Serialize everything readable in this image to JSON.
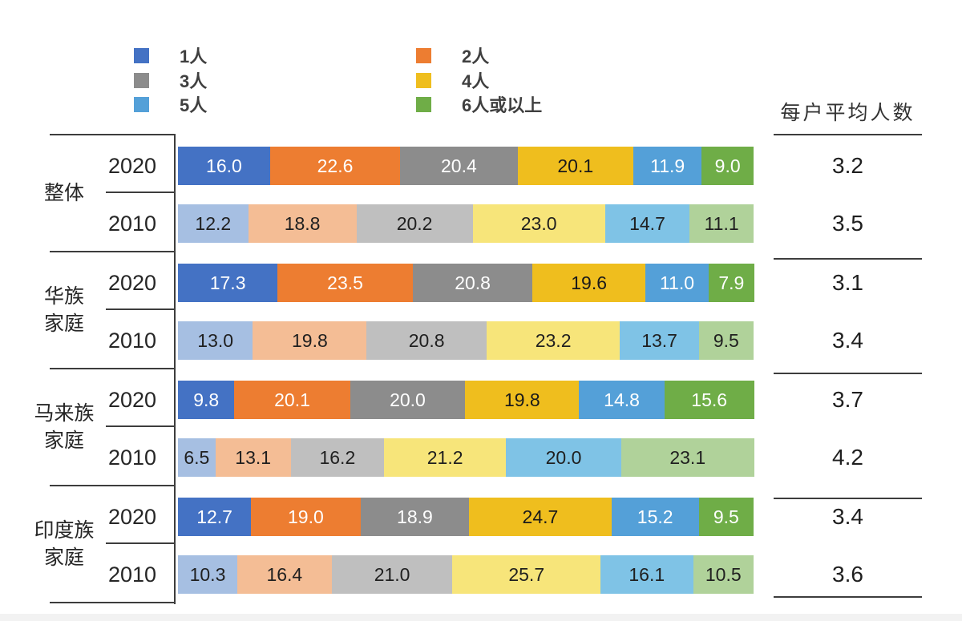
{
  "legend": {
    "items": [
      {
        "label": "1人",
        "color": "#4472C4"
      },
      {
        "label": "2人",
        "color": "#ED7D31"
      },
      {
        "label": "3人",
        "color": "#8C8C8C"
      },
      {
        "label": "4人",
        "color": "#EFBE1E"
      },
      {
        "label": "5人",
        "color": "#54A0D8"
      },
      {
        "label": "6人或以上",
        "color": "#6FAD47"
      }
    ]
  },
  "chart_data": {
    "type": "bar",
    "stacked": true,
    "orientation": "horizontal",
    "unit": "%",
    "categories": [
      "1人",
      "2人",
      "3人",
      "4人",
      "5人",
      "6人或以上"
    ],
    "avg_header": "每户平均人数",
    "series_colors_2020": [
      "#4472C4",
      "#ED7D31",
      "#8C8C8C",
      "#EFBE1E",
      "#54A0D8",
      "#6FAD47"
    ],
    "series_colors_2010": [
      "#A6BFE2",
      "#F4BD95",
      "#BFBFBF",
      "#F7E57A",
      "#7FC3E6",
      "#B0D29A"
    ],
    "value_text_colors_2020": [
      "#FFFFFF",
      "#FFFFFF",
      "#FFFFFF",
      "#1A1A1A",
      "#FFFFFF",
      "#FFFFFF"
    ],
    "value_text_colors_2010": [
      "#1F1F1F",
      "#1F1F1F",
      "#1F1F1F",
      "#1F1F1F",
      "#1F1F1F",
      "#1F1F1F"
    ],
    "groups": [
      {
        "label": "整体",
        "label_lines": [
          "整体"
        ],
        "rows": [
          {
            "year": "2020",
            "values": [
              16.0,
              22.6,
              20.4,
              20.1,
              11.9,
              9.0
            ],
            "avg": "3.2"
          },
          {
            "year": "2010",
            "values": [
              12.2,
              18.8,
              20.2,
              23.0,
              14.7,
              11.1
            ],
            "avg": "3.5"
          }
        ]
      },
      {
        "label": "华族家庭",
        "label_lines": [
          "华族",
          "家庭"
        ],
        "rows": [
          {
            "year": "2020",
            "values": [
              17.3,
              23.5,
              20.8,
              19.6,
              11.0,
              7.9
            ],
            "avg": "3.1"
          },
          {
            "year": "2010",
            "values": [
              13.0,
              19.8,
              20.8,
              23.2,
              13.7,
              9.5
            ],
            "avg": "3.4"
          }
        ]
      },
      {
        "label": "马来族家庭",
        "label_lines": [
          "马来族",
          "家庭"
        ],
        "rows": [
          {
            "year": "2020",
            "values": [
              9.8,
              20.1,
              20.0,
              19.8,
              14.8,
              15.6
            ],
            "avg": "3.7"
          },
          {
            "year": "2010",
            "values": [
              6.5,
              13.1,
              16.2,
              21.2,
              20.0,
              23.1
            ],
            "avg": "4.2"
          }
        ]
      },
      {
        "label": "印度族家庭",
        "label_lines": [
          "印度族",
          "家庭"
        ],
        "rows": [
          {
            "year": "2020",
            "values": [
              12.7,
              19.0,
              18.9,
              24.7,
              15.2,
              9.5
            ],
            "avg": "3.4"
          },
          {
            "year": "2010",
            "values": [
              10.3,
              16.4,
              21.0,
              25.7,
              16.1,
              10.5
            ],
            "avg": "3.6"
          }
        ]
      }
    ]
  }
}
